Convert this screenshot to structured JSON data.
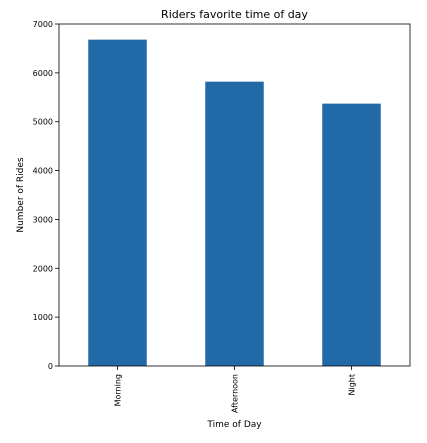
{
  "chart_data": {
    "type": "bar",
    "title": "Riders favorite time of day",
    "xlabel": "Time of Day",
    "ylabel": "Number of Rides",
    "categories": [
      "Morning",
      "Afternoon",
      "Night"
    ],
    "values": [
      6680,
      5820,
      5370
    ],
    "ylim": [
      0,
      7000
    ],
    "yticks": [
      0,
      1000,
      2000,
      3000,
      4000,
      5000,
      6000,
      7000
    ],
    "bar_color": "#2269a8",
    "grid": false,
    "legend": "none"
  }
}
